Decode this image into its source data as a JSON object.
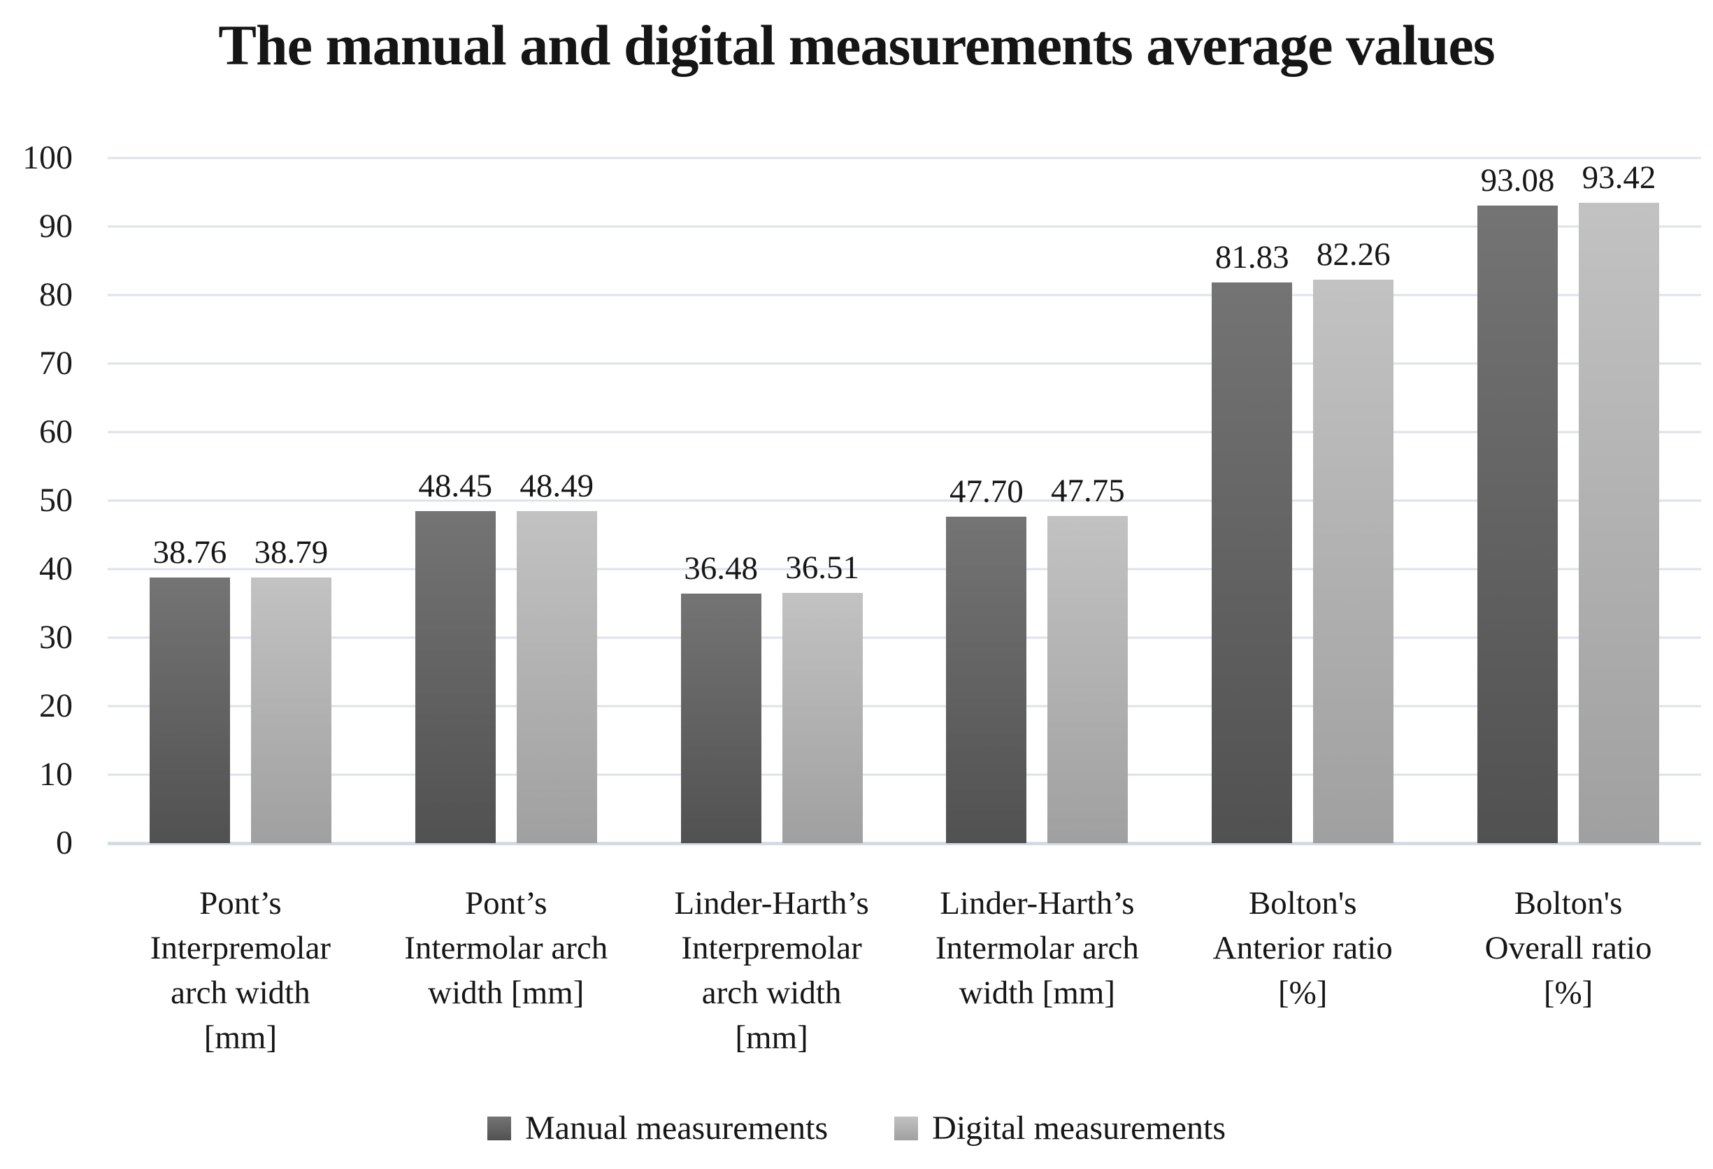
{
  "title": "The manual and digital measurements average values",
  "colors": {
    "text": "#1a1a1a",
    "gridline": "#dde2eb",
    "axis_line": "#d5dbe5",
    "manual_top": "#747474",
    "manual_bottom": "#515151",
    "digital_top": "#c2c2c2",
    "digital_bottom": "#a0a0a0"
  },
  "chart_data": {
    "type": "bar",
    "title": "The manual and digital measurements average values",
    "categories": [
      "Pont’s\nInterpremolar\narch width\n[mm]",
      "Pont’s\nIntermolar arch\nwidth [mm]",
      "Linder-Harth’s\nInterpremolar\narch width\n[mm]",
      "Linder-Harth’s\nIntermolar arch\nwidth [mm]",
      "Bolton's\nAnterior ratio\n[%]",
      "Bolton's\nOverall ratio\n[%]"
    ],
    "series": [
      {
        "name": "Manual measurements",
        "values": [
          38.76,
          48.45,
          36.48,
          47.7,
          81.83,
          93.08
        ],
        "labels": [
          "38.76",
          "48.45",
          "36.48",
          "47.70",
          "81.83",
          "93.08"
        ],
        "color_top": "#747474",
        "color_bottom": "#515151"
      },
      {
        "name": "Digital measurements",
        "values": [
          38.79,
          48.49,
          36.51,
          47.75,
          82.26,
          93.42
        ],
        "labels": [
          "38.79",
          "48.49",
          "36.51",
          "47.75",
          "82.26",
          "93.42"
        ],
        "color_top": "#c2c2c2",
        "color_bottom": "#a0a0a0"
      }
    ],
    "xlabel": "",
    "ylabel": "",
    "ylim": [
      0,
      100
    ],
    "yticks": [
      0,
      10,
      20,
      30,
      40,
      50,
      60,
      70,
      80,
      90,
      100
    ],
    "grid": true,
    "legend_position": "bottom"
  },
  "legend": {
    "items": [
      {
        "label": "Manual measurements",
        "swatch_top": "#747474",
        "swatch_bottom": "#515151"
      },
      {
        "label": "Digital measurements",
        "swatch_top": "#c2c2c2",
        "swatch_bottom": "#a0a0a0"
      }
    ]
  }
}
